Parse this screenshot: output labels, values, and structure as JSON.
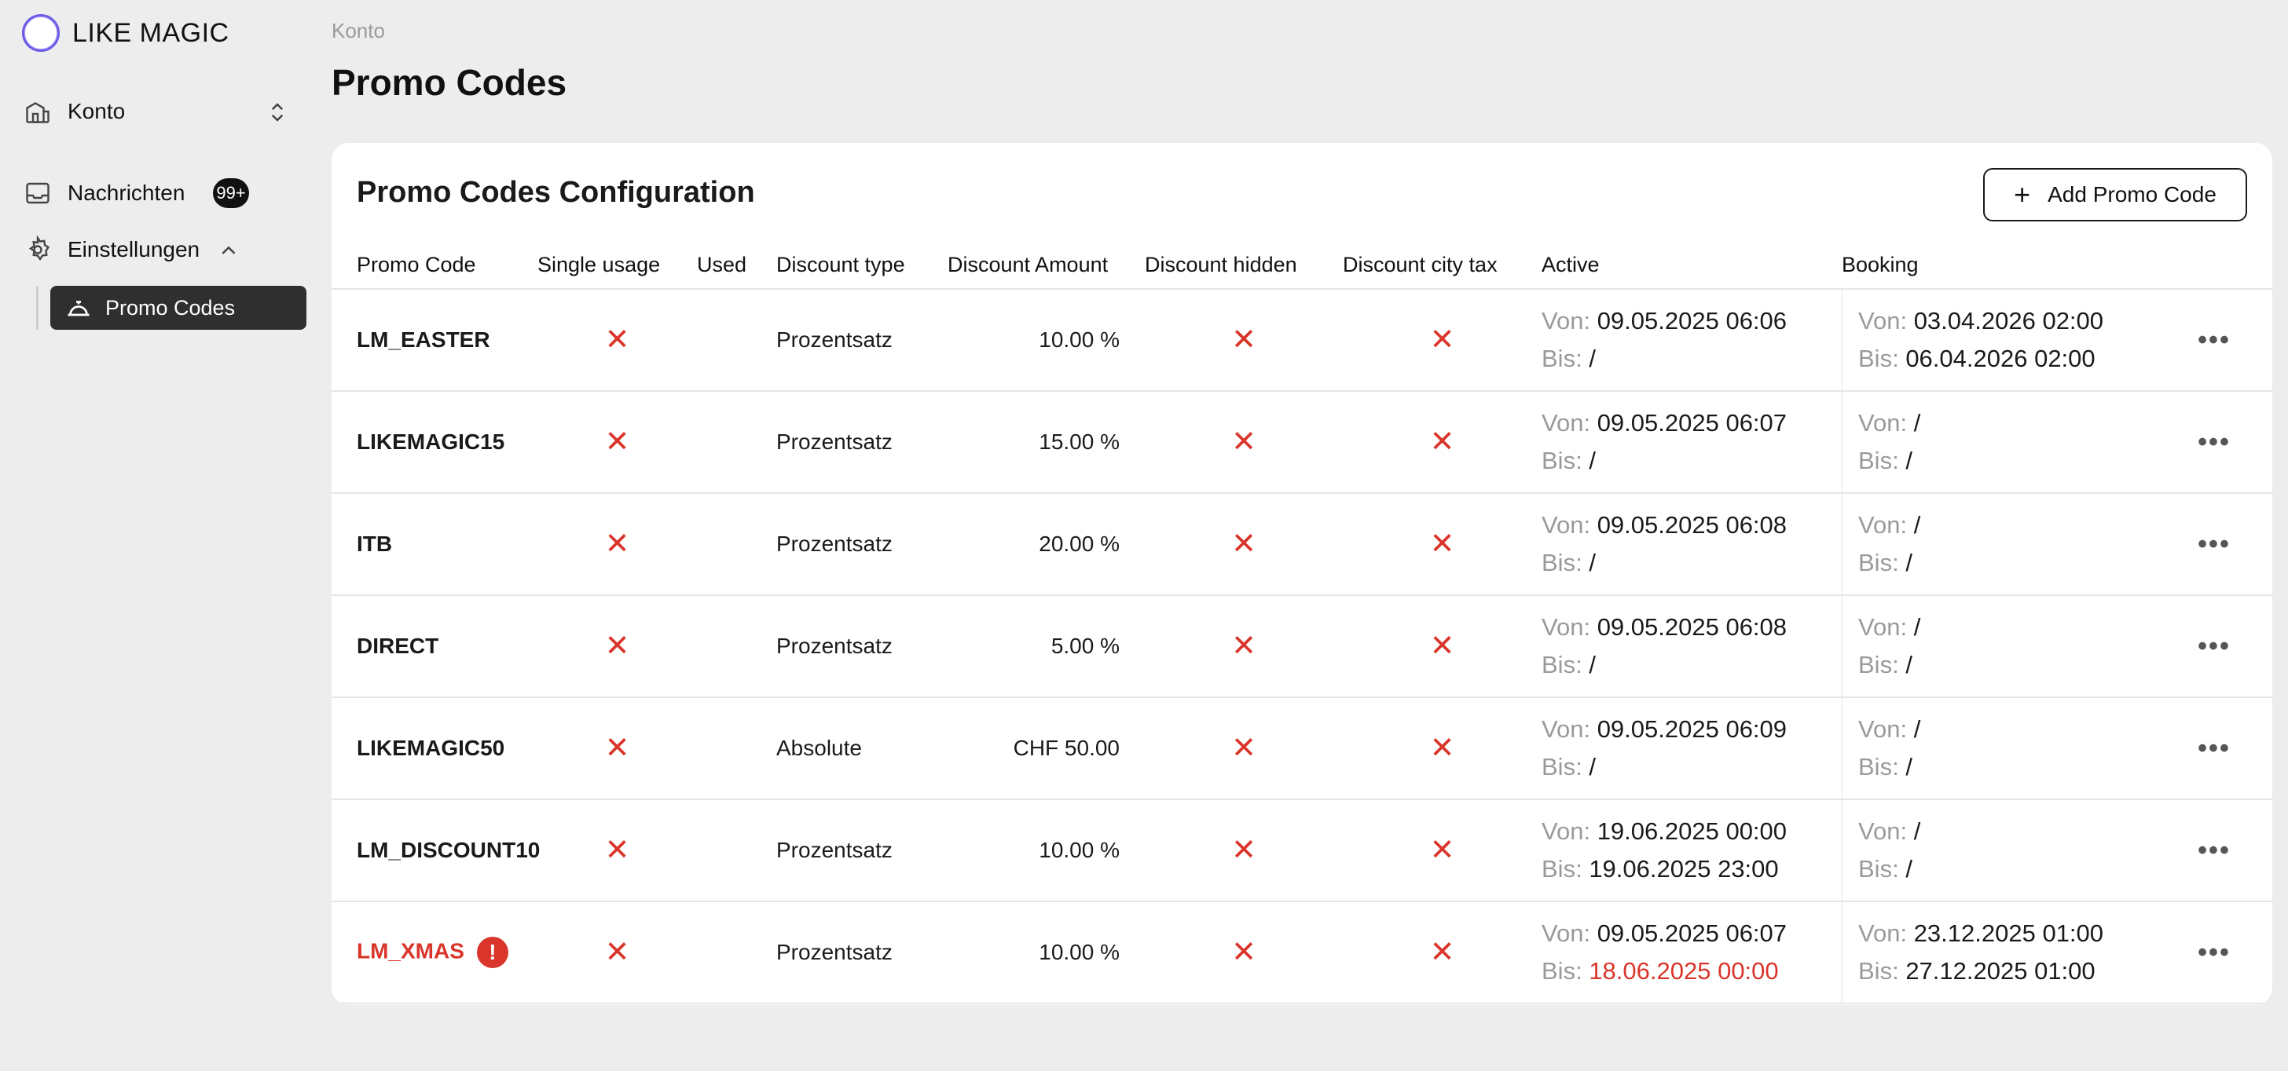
{
  "app": {
    "title": "LIKE MAGIC"
  },
  "sidebar": {
    "konto_label": "Konto",
    "nachrichten_label": "Nachrichten",
    "nachrichten_badge": "99+",
    "einstellungen_label": "Einstellungen",
    "promo_codes_label": "Promo Codes"
  },
  "header": {
    "breadcrumb": "Konto",
    "title": "Promo Codes"
  },
  "card": {
    "title": "Promo Codes Configuration",
    "add_button": "Add Promo Code"
  },
  "table": {
    "columns": [
      "Promo Code",
      "Single usage",
      "Used",
      "Discount type",
      "Discount Amount",
      "Discount hidden",
      "Discount city tax",
      "Active",
      "Booking"
    ],
    "von_label": "Von:",
    "bis_label": "Bis:",
    "rows": [
      {
        "code": "LM_EASTER",
        "single_usage": "✕",
        "used": "",
        "type": "Prozentsatz",
        "amount": "10.00 %",
        "hidden": "✕",
        "city_tax": "✕",
        "active_von": "09.05.2025 06:06",
        "active_bis": "/",
        "booking_von": "03.04.2026 02:00",
        "booking_bis": "06.04.2026 02:00"
      },
      {
        "code": "LIKEMAGIC15",
        "single_usage": "✕",
        "used": "",
        "type": "Prozentsatz",
        "amount": "15.00 %",
        "hidden": "✕",
        "city_tax": "✕",
        "active_von": "09.05.2025 06:07",
        "active_bis": "/",
        "booking_von": "/",
        "booking_bis": "/"
      },
      {
        "code": "ITB",
        "single_usage": "✕",
        "used": "",
        "type": "Prozentsatz",
        "amount": "20.00 %",
        "hidden": "✕",
        "city_tax": "✕",
        "active_von": "09.05.2025 06:08",
        "active_bis": "/",
        "booking_von": "/",
        "booking_bis": "/"
      },
      {
        "code": "DIRECT",
        "single_usage": "✕",
        "used": "",
        "type": "Prozentsatz",
        "amount": "5.00 %",
        "hidden": "✕",
        "city_tax": "✕",
        "active_von": "09.05.2025 06:08",
        "active_bis": "/",
        "booking_von": "/",
        "booking_bis": "/"
      },
      {
        "code": "LIKEMAGIC50",
        "single_usage": "✕",
        "used": "",
        "type": "Absolute",
        "amount": "CHF 50.00",
        "hidden": "✕",
        "city_tax": "✕",
        "active_von": "09.05.2025 06:09",
        "active_bis": "/",
        "booking_von": "/",
        "booking_bis": "/"
      },
      {
        "code": "LM_DISCOUNT10",
        "single_usage": "✕",
        "used": "",
        "type": "Prozentsatz",
        "amount": "10.00 %",
        "hidden": "✕",
        "city_tax": "✕",
        "active_von": "19.06.2025 00:00",
        "active_bis": "19.06.2025 23:00",
        "booking_von": "/",
        "booking_bis": "/"
      },
      {
        "code": "LM_XMAS",
        "single_usage": "✕",
        "used": "",
        "type": "Prozentsatz",
        "amount": "10.00 %",
        "hidden": "✕",
        "city_tax": "✕",
        "active_von": "09.05.2025 06:07",
        "active_bis": "18.06.2025 00:00",
        "booking_von": "23.12.2025 01:00",
        "booking_bis": "27.12.2025 01:00",
        "error_glyph": "!"
      }
    ]
  },
  "colors": {
    "accent_error": "#d9352a",
    "logo_ring": "#6b5be6",
    "active_nav_bg": "#2f2f2f"
  },
  "icons": {
    "konto": "building-icon",
    "nachrichten": "inbox-icon",
    "einstellungen": "gear-icon",
    "promo": "cloche-icon",
    "row_menu": "more-horizontal-icon"
  }
}
